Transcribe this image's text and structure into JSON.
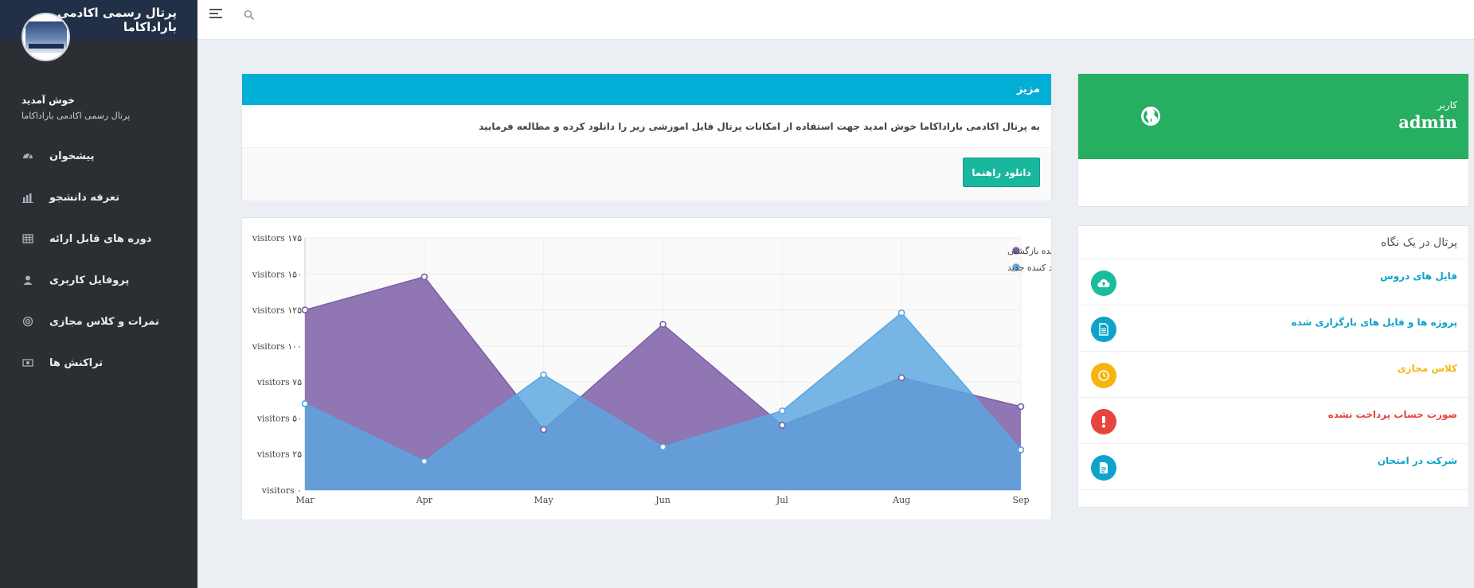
{
  "sidebar": {
    "brand": "پرتال رسمی اکادمی باراداکاما",
    "welcome": "خوش آمدید",
    "welcome_sub": "پرتال رسمی اکادمی باراداکاما",
    "items": [
      {
        "label": "پیشخوان",
        "icon": "dashboard-icon"
      },
      {
        "label": "تعرفه دانشجو",
        "icon": "bar-chart-icon"
      },
      {
        "label": "دوره های قابل ارائه",
        "icon": "table-icon"
      },
      {
        "label": "پروفایل کاربری",
        "icon": "user-icon"
      },
      {
        "label": "نمرات و کلاس مجازی",
        "icon": "target-icon"
      },
      {
        "label": "تراکنش ها",
        "icon": "money-icon"
      }
    ]
  },
  "welcome_panel": {
    "title": "مزیز",
    "message": "به پرتال اکادمی باراداکاما خوش امدید جهت استفاده از امکانات پرتال فایل اموزشی زیر را دانلود کرده و مطالعه فرمایید",
    "download_label": "دانلود راهنما"
  },
  "user_panel": {
    "label": "کاربر",
    "value": "admin"
  },
  "glance": {
    "title": "پرتال در یک نگاه",
    "items": [
      {
        "label": "فایل های دروس",
        "color": "#1abc9c",
        "icon": "cloud-upload-icon"
      },
      {
        "label": "پروژه ها و فایل های بارگزاری شده",
        "color": "#0fa3c9",
        "icon": "document-icon"
      },
      {
        "label": "کلاس مجازی",
        "color": "#f5b50e",
        "icon": "clock-icon"
      },
      {
        "label": "صورت حساب پرداخت نشده",
        "color": "#e8443f",
        "icon": "alert-icon"
      },
      {
        "label": "شرکت در امتحان",
        "color": "#0fa3c9",
        "icon": "file-text-icon"
      }
    ]
  },
  "chart_data": {
    "type": "area",
    "x": [
      "Mar",
      "Apr",
      "May",
      "Jun",
      "Jul",
      "Aug",
      "Sep"
    ],
    "ylim": [
      0,
      175
    ],
    "yticks": [
      "visitors ۰",
      "visitors ۲۵",
      "visitors ۵۰",
      "visitors ۷۵",
      "visitors ۱۰۰",
      "visitors ۱۲۵",
      "visitors ۱۵۰",
      "visitors ۱۷۵"
    ],
    "ytick_values": [
      0,
      25,
      50,
      75,
      100,
      125,
      150,
      175
    ],
    "legend_placement": "top-right",
    "grid": true,
    "series": [
      {
        "name": "بازدید کننده بازگشتی",
        "color": "#7d5ea6",
        "values": [
          125,
          148,
          42,
          115,
          45,
          78,
          58
        ]
      },
      {
        "name": "بازدید کننده جدید",
        "color": "#5aa6e0",
        "values": [
          60,
          20,
          80,
          30,
          55,
          123,
          28
        ]
      }
    ]
  }
}
